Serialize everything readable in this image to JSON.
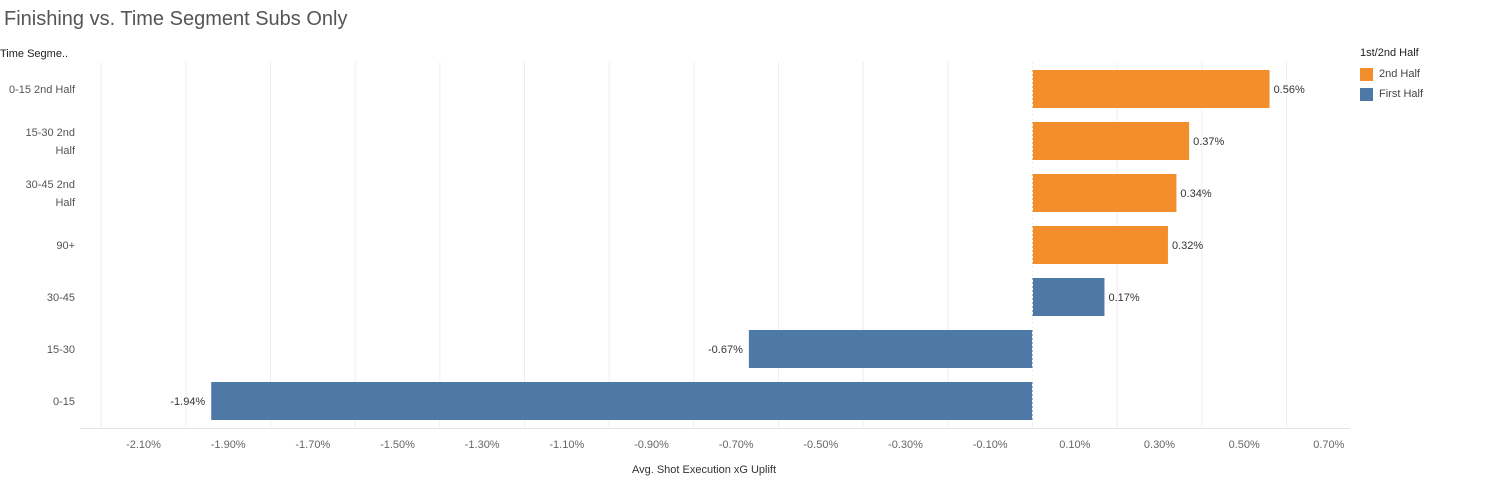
{
  "chart_data": {
    "type": "bar",
    "orientation": "horizontal",
    "title": "Finishing vs. Time Segment Subs Only",
    "row_header": "Time Segme..",
    "xlabel": "Avg. Shot Execution xG Uplift",
    "ylabel": "",
    "xlim": [
      -0.0225,
      0.0075
    ],
    "x_ticks": [
      -0.021,
      -0.019,
      -0.017,
      -0.015,
      -0.013,
      -0.011,
      -0.009,
      -0.007,
      -0.005,
      -0.003,
      -0.001,
      0.001,
      0.003,
      0.005,
      0.007
    ],
    "x_tick_labels": [
      "-2.10%",
      "-1.90%",
      "-1.70%",
      "-1.50%",
      "-1.30%",
      "-1.10%",
      "-0.90%",
      "-0.70%",
      "-0.50%",
      "-0.30%",
      "-0.10%",
      "0.10%",
      "0.30%",
      "0.50%",
      "0.70%"
    ],
    "grid": true,
    "legend": {
      "title": "1st/2nd Half",
      "placement": "top-right",
      "items": [
        {
          "name": "2nd Half",
          "color": "#F28E2B"
        },
        {
          "name": "First Half",
          "color": "#4E79A7"
        }
      ]
    },
    "bars": [
      {
        "category_lines": [
          "0-15 2nd Half"
        ],
        "value": 0.0056,
        "label": "0.56%",
        "group": "2nd Half"
      },
      {
        "category_lines": [
          "15-30 2nd",
          "Half"
        ],
        "value": 0.0037,
        "label": "0.37%",
        "group": "2nd Half"
      },
      {
        "category_lines": [
          "30-45 2nd",
          "Half"
        ],
        "value": 0.0034,
        "label": "0.34%",
        "group": "2nd Half"
      },
      {
        "category_lines": [
          "90+"
        ],
        "value": 0.0032,
        "label": "0.32%",
        "group": "2nd Half"
      },
      {
        "category_lines": [
          "30-45"
        ],
        "value": 0.0017,
        "label": "0.17%",
        "group": "First Half"
      },
      {
        "category_lines": [
          "15-30"
        ],
        "value": -0.0067,
        "label": "-0.67%",
        "group": "First Half"
      },
      {
        "category_lines": [
          "0-15"
        ],
        "value": -0.0194,
        "label": "-1.94%",
        "group": "First Half"
      }
    ]
  }
}
